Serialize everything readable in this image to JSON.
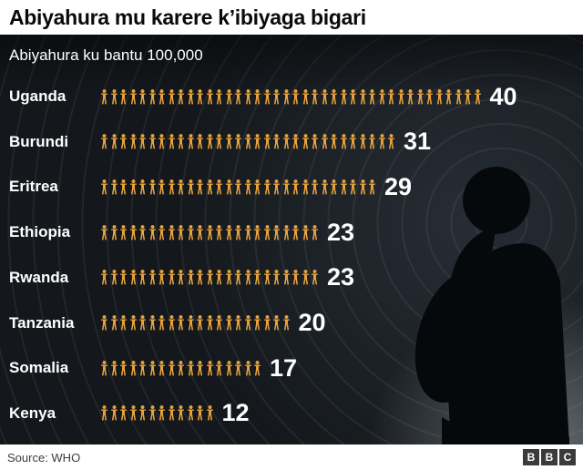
{
  "header": {
    "title": "Abiyahura mu karere k’ibiyaga bigari"
  },
  "chart_data": {
    "type": "bar",
    "variant": "pictogram",
    "title": "Abiyahura mu karere k’ibiyaga bigari",
    "subtitle": "Abiyahura ku bantu 100,000",
    "categories": [
      "Uganda",
      "Burundi",
      "Eritrea",
      "Ethiopia",
      "Rwanda",
      "Tanzania",
      "Somalia",
      "Kenya"
    ],
    "values": [
      40,
      31,
      29,
      23,
      23,
      20,
      17,
      12
    ],
    "xlabel": "",
    "ylabel": "",
    "xlim": [
      0,
      40
    ],
    "icon": "person-icon",
    "icon_color": "#e8a33d",
    "value_label_color": "#ffffff",
    "legend": "none",
    "grid": "off"
  },
  "footer": {
    "source": "Source: WHO",
    "logo_letters": [
      "B",
      "B",
      "C"
    ]
  }
}
